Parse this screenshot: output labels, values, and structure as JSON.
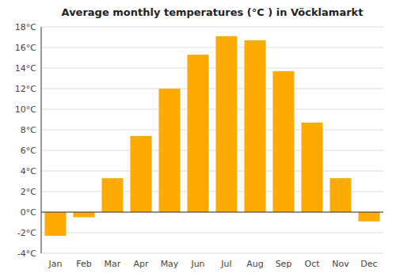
{
  "chart_data": {
    "type": "bar",
    "title": "Average monthly temperatures (°C ) in Vöcklamarkt",
    "categories": [
      "Jan",
      "Feb",
      "Mar",
      "Apr",
      "May",
      "Jun",
      "Jul",
      "Aug",
      "Sep",
      "Oct",
      "Nov",
      "Dec"
    ],
    "values": [
      -2.3,
      -0.5,
      3.3,
      7.4,
      12.0,
      15.3,
      17.1,
      16.7,
      13.7,
      8.7,
      3.3,
      -0.9
    ],
    "color": "#FFAA00",
    "ylim": [
      -4,
      18
    ],
    "yticks": [
      {
        "value": -4,
        "label": "-4°C"
      },
      {
        "value": -2,
        "label": "-2°C"
      },
      {
        "value": 0,
        "label": "0°C"
      },
      {
        "value": 2,
        "label": "2°C"
      },
      {
        "value": 4,
        "label": "4°C"
      },
      {
        "value": 6,
        "label": "6°C"
      },
      {
        "value": 8,
        "label": "8°C"
      },
      {
        "value": 10,
        "label": "10°C"
      },
      {
        "value": 12,
        "label": "12°C"
      },
      {
        "value": 14,
        "label": "14°C"
      },
      {
        "value": 16,
        "label": "16°C"
      },
      {
        "value": 18,
        "label": "18°C"
      }
    ],
    "grid": true
  }
}
